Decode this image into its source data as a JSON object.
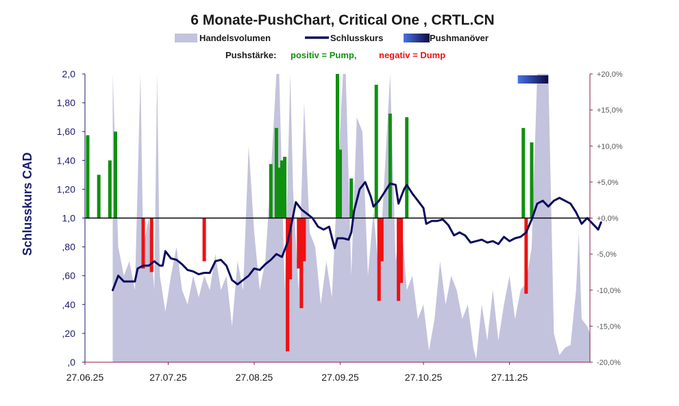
{
  "chart_data": {
    "type": "line",
    "title": "6 Monate-PushChart, Critical One , CRTL.CN",
    "legend": {
      "placement": "top",
      "items": [
        {
          "name": "Handelsvolumen",
          "color": "#c3c3dd"
        },
        {
          "name": "Schlusskurs",
          "color": "#0a0a5c"
        },
        {
          "name": "Pushmanöver",
          "color": "#3b5bd6"
        }
      ]
    },
    "push_legend": {
      "label": "Pushstärke:",
      "positive": "positiv = Pump,",
      "negative": "negativ = Dump",
      "positive_color": "#109010",
      "negative_color": "#ee1111"
    },
    "ylabel": "Schlusskurs CAD",
    "ylim": [
      0,
      2.0
    ],
    "y_ticks": [
      ",0",
      ",20",
      ",40",
      ",60",
      ",80",
      "1,0",
      "1,20",
      "1,40",
      "1,60",
      "1,80",
      "2,0"
    ],
    "y_tick_values": [
      0,
      0.2,
      0.4,
      0.6,
      0.8,
      1.0,
      1.2,
      1.4,
      1.6,
      1.8,
      2.0
    ],
    "y2lim": [
      -20,
      20
    ],
    "y2_ticks": [
      "-20,0%",
      "-15,0%",
      "-10,0%",
      "-5,0%",
      "+0,0%",
      "+5,0%",
      "+10,0%",
      "+15,0%",
      "+20,0%"
    ],
    "y2_tick_values": [
      -20,
      -15,
      -10,
      -5,
      0,
      5,
      10,
      15,
      20
    ],
    "xlim": [
      "2025-06-27",
      "2025-12-26"
    ],
    "x_ticks": [
      "27.06.25",
      "27.07.25",
      "27.08.25",
      "27.09.25",
      "27.10.25",
      "27.11.25"
    ],
    "x_tick_dates": [
      "2025-06-27",
      "2025-07-27",
      "2025-08-27",
      "2025-09-27",
      "2025-10-27",
      "2025-11-27"
    ],
    "grid": false,
    "series": [
      {
        "name": "Schlusskurs",
        "color": "#0a0a5c",
        "points": [
          [
            "2025-07-07",
            0.5
          ],
          [
            "2025-07-09",
            0.6
          ],
          [
            "2025-07-11",
            0.56
          ],
          [
            "2025-07-13",
            0.56
          ],
          [
            "2025-07-15",
            0.56
          ],
          [
            "2025-07-16",
            0.65
          ],
          [
            "2025-07-18",
            0.67
          ],
          [
            "2025-07-20",
            0.67
          ],
          [
            "2025-07-22",
            0.7
          ],
          [
            "2025-07-24",
            0.67
          ],
          [
            "2025-07-25",
            0.67
          ],
          [
            "2025-07-26",
            0.77
          ],
          [
            "2025-07-28",
            0.72
          ],
          [
            "2025-07-30",
            0.71
          ],
          [
            "2025-08-01",
            0.68
          ],
          [
            "2025-08-03",
            0.64
          ],
          [
            "2025-08-05",
            0.63
          ],
          [
            "2025-08-07",
            0.61
          ],
          [
            "2025-08-09",
            0.62
          ],
          [
            "2025-08-11",
            0.62
          ],
          [
            "2025-08-13",
            0.7
          ],
          [
            "2025-08-15",
            0.71
          ],
          [
            "2025-08-17",
            0.67
          ],
          [
            "2025-08-19",
            0.57
          ],
          [
            "2025-08-21",
            0.54
          ],
          [
            "2025-08-23",
            0.57
          ],
          [
            "2025-08-25",
            0.6
          ],
          [
            "2025-08-27",
            0.65
          ],
          [
            "2025-08-29",
            0.64
          ],
          [
            "2025-08-31",
            0.68
          ],
          [
            "2025-09-02",
            0.71
          ],
          [
            "2025-09-04",
            0.75
          ],
          [
            "2025-09-06",
            0.73
          ],
          [
            "2025-09-08",
            0.83
          ],
          [
            "2025-09-09",
            0.92
          ],
          [
            "2025-09-11",
            1.11
          ],
          [
            "2025-09-13",
            1.06
          ],
          [
            "2025-09-15",
            1.03
          ],
          [
            "2025-09-17",
            1.0
          ],
          [
            "2025-09-19",
            0.94
          ],
          [
            "2025-09-21",
            0.92
          ],
          [
            "2025-09-23",
            0.94
          ],
          [
            "2025-09-25",
            0.79
          ],
          [
            "2025-09-26",
            0.86
          ],
          [
            "2025-09-28",
            0.86
          ],
          [
            "2025-09-30",
            0.85
          ],
          [
            "2025-10-01",
            0.9
          ],
          [
            "2025-10-02",
            1.05
          ],
          [
            "2025-10-04",
            1.2
          ],
          [
            "2025-10-06",
            1.25
          ],
          [
            "2025-10-08",
            1.15
          ],
          [
            "2025-10-09",
            1.08
          ],
          [
            "2025-10-11",
            1.12
          ],
          [
            "2025-10-13",
            1.18
          ],
          [
            "2025-10-15",
            1.24
          ],
          [
            "2025-10-17",
            1.23
          ],
          [
            "2025-10-18",
            1.1
          ],
          [
            "2025-10-20",
            1.2
          ],
          [
            "2025-10-21",
            1.23
          ],
          [
            "2025-10-23",
            1.17
          ],
          [
            "2025-10-25",
            1.12
          ],
          [
            "2025-10-27",
            1.07
          ],
          [
            "2025-10-28",
            0.96
          ],
          [
            "2025-10-30",
            0.98
          ],
          [
            "2025-11-01",
            0.98
          ],
          [
            "2025-11-03",
            0.99
          ],
          [
            "2025-11-05",
            0.95
          ],
          [
            "2025-11-07",
            0.88
          ],
          [
            "2025-11-09",
            0.9
          ],
          [
            "2025-11-11",
            0.88
          ],
          [
            "2025-11-13",
            0.83
          ],
          [
            "2025-11-15",
            0.84
          ],
          [
            "2025-11-17",
            0.85
          ],
          [
            "2025-11-19",
            0.83
          ],
          [
            "2025-11-21",
            0.84
          ],
          [
            "2025-11-23",
            0.82
          ],
          [
            "2025-11-25",
            0.87
          ],
          [
            "2025-11-27",
            0.84
          ],
          [
            "2025-11-29",
            0.86
          ],
          [
            "2025-12-01",
            0.87
          ],
          [
            "2025-12-03",
            0.9
          ],
          [
            "2025-12-05",
            0.99
          ],
          [
            "2025-12-07",
            1.1
          ],
          [
            "2025-12-09",
            1.12
          ],
          [
            "2025-12-11",
            1.08
          ],
          [
            "2025-12-13",
            1.12
          ],
          [
            "2025-12-15",
            1.14
          ],
          [
            "2025-12-17",
            1.12
          ],
          [
            "2025-12-19",
            1.1
          ],
          [
            "2025-12-21",
            1.04
          ],
          [
            "2025-12-23",
            0.96
          ],
          [
            "2025-12-25",
            1.0
          ],
          [
            "2025-12-26",
            0.98
          ],
          [
            "2025-12-28",
            0.94
          ],
          [
            "2025-12-29",
            0.92
          ],
          [
            "2025-12-30",
            0.97
          ]
        ]
      },
      {
        "name": "Handelsvolumen",
        "color": "#c3c3dd",
        "scale_max": 2.0,
        "points": [
          [
            "2025-07-07",
            2.0
          ],
          [
            "2025-07-09",
            0.8
          ],
          [
            "2025-07-11",
            0.6
          ],
          [
            "2025-07-13",
            0.7
          ],
          [
            "2025-07-15",
            0.5
          ],
          [
            "2025-07-17",
            2.0
          ],
          [
            "2025-07-18",
            0.8
          ],
          [
            "2025-07-20",
            1.0
          ],
          [
            "2025-07-22",
            0.5
          ],
          [
            "2025-07-23",
            2.0
          ],
          [
            "2025-07-24",
            0.6
          ],
          [
            "2025-07-26",
            0.35
          ],
          [
            "2025-07-28",
            0.6
          ],
          [
            "2025-07-30",
            0.8
          ],
          [
            "2025-08-01",
            0.5
          ],
          [
            "2025-08-03",
            0.4
          ],
          [
            "2025-08-05",
            0.6
          ],
          [
            "2025-08-07",
            0.45
          ],
          [
            "2025-08-09",
            0.6
          ],
          [
            "2025-08-11",
            0.5
          ],
          [
            "2025-08-13",
            0.75
          ],
          [
            "2025-08-15",
            0.5
          ],
          [
            "2025-08-17",
            0.6
          ],
          [
            "2025-08-19",
            0.25
          ],
          [
            "2025-08-21",
            0.7
          ],
          [
            "2025-08-23",
            0.5
          ],
          [
            "2025-08-25",
            1.5
          ],
          [
            "2025-08-27",
            0.9
          ],
          [
            "2025-08-29",
            0.5
          ],
          [
            "2025-08-31",
            0.7
          ],
          [
            "2025-09-02",
            1.3
          ],
          [
            "2025-09-04",
            2.0
          ],
          [
            "2025-09-05",
            2.0
          ],
          [
            "2025-09-07",
            0.5
          ],
          [
            "2025-09-09",
            2.0
          ],
          [
            "2025-09-10",
            1.2
          ],
          [
            "2025-09-12",
            0.5
          ],
          [
            "2025-09-14",
            1.8
          ],
          [
            "2025-09-16",
            0.9
          ],
          [
            "2025-09-18",
            0.8
          ],
          [
            "2025-09-20",
            0.4
          ],
          [
            "2025-09-22",
            0.7
          ],
          [
            "2025-09-24",
            0.45
          ],
          [
            "2025-09-26",
            1.25
          ],
          [
            "2025-09-28",
            2.0
          ],
          [
            "2025-09-29",
            2.0
          ],
          [
            "2025-10-01",
            0.6
          ],
          [
            "2025-10-03",
            1.7
          ],
          [
            "2025-10-05",
            1.6
          ],
          [
            "2025-10-07",
            0.6
          ],
          [
            "2025-10-09",
            1.05
          ],
          [
            "2025-10-11",
            0.6
          ],
          [
            "2025-10-13",
            1.3
          ],
          [
            "2025-10-15",
            2.0
          ],
          [
            "2025-10-17",
            0.7
          ],
          [
            "2025-10-19",
            1.0
          ],
          [
            "2025-10-21",
            0.5
          ],
          [
            "2025-10-23",
            0.6
          ],
          [
            "2025-10-25",
            0.3
          ],
          [
            "2025-10-27",
            0.4
          ],
          [
            "2025-10-29",
            0.08
          ],
          [
            "2025-10-31",
            0.3
          ],
          [
            "2025-11-02",
            0.7
          ],
          [
            "2025-11-04",
            0.4
          ],
          [
            "2025-11-06",
            0.6
          ],
          [
            "2025-11-08",
            0.5
          ],
          [
            "2025-11-10",
            0.3
          ],
          [
            "2025-11-12",
            0.4
          ],
          [
            "2025-11-14",
            0.1
          ],
          [
            "2025-11-15",
            0.02
          ],
          [
            "2025-11-17",
            0.4
          ],
          [
            "2025-11-19",
            0.15
          ],
          [
            "2025-11-21",
            0.5
          ],
          [
            "2025-11-23",
            0.15
          ],
          [
            "2025-11-25",
            0.4
          ],
          [
            "2025-11-27",
            0.6
          ],
          [
            "2025-11-29",
            0.3
          ],
          [
            "2025-12-01",
            0.5
          ],
          [
            "2025-12-03",
            0.55
          ],
          [
            "2025-12-05",
            0.8
          ],
          [
            "2025-12-07",
            2.0
          ],
          [
            "2025-12-09",
            2.0
          ],
          [
            "2025-12-11",
            2.0
          ],
          [
            "2025-12-13",
            0.2
          ],
          [
            "2025-12-15",
            0.05
          ],
          [
            "2025-12-17",
            0.1
          ],
          [
            "2025-12-19",
            0.12
          ],
          [
            "2025-12-21",
            0.5
          ],
          [
            "2025-12-22",
            0.9
          ],
          [
            "2025-12-23",
            0.3
          ],
          [
            "2025-12-25",
            0.25
          ],
          [
            "2025-12-27",
            0.15
          ],
          [
            "2025-12-29",
            0.35
          ],
          [
            "2025-12-30",
            0.0
          ]
        ]
      },
      {
        "name": "Pushstärke",
        "unit": "%",
        "bars": [
          [
            "2025-06-28",
            11.5
          ],
          [
            "2025-07-02",
            6.0
          ],
          [
            "2025-07-06",
            8.0
          ],
          [
            "2025-07-08",
            12.0
          ],
          [
            "2025-07-18",
            -7.0
          ],
          [
            "2025-07-21",
            -7.5
          ],
          [
            "2025-08-09",
            -6.0
          ],
          [
            "2025-09-02",
            7.5
          ],
          [
            "2025-09-04",
            12.5
          ],
          [
            "2025-09-05",
            7.0
          ],
          [
            "2025-09-06",
            8.0
          ],
          [
            "2025-09-07",
            8.5
          ],
          [
            "2025-09-08",
            -18.5
          ],
          [
            "2025-09-09",
            -8.5
          ],
          [
            "2025-09-12",
            -7.0
          ],
          [
            "2025-09-13",
            -12.5
          ],
          [
            "2025-09-14",
            -6.0
          ],
          [
            "2025-09-26",
            20.0
          ],
          [
            "2025-09-27",
            9.5
          ],
          [
            "2025-10-01",
            5.5
          ],
          [
            "2025-10-10",
            18.5
          ],
          [
            "2025-10-11",
            -11.5
          ],
          [
            "2025-10-12",
            -6.0
          ],
          [
            "2025-10-15",
            14.5
          ],
          [
            "2025-10-18",
            -11.5
          ],
          [
            "2025-10-19",
            -9.0
          ],
          [
            "2025-10-21",
            14.0
          ],
          [
            "2025-12-02",
            12.5
          ],
          [
            "2025-12-03",
            -10.5
          ],
          [
            "2025-12-05",
            10.5
          ]
        ]
      },
      {
        "name": "Pushmanöver",
        "ranges": [
          [
            "2025-11-30",
            "2025-12-11"
          ]
        ]
      }
    ]
  }
}
